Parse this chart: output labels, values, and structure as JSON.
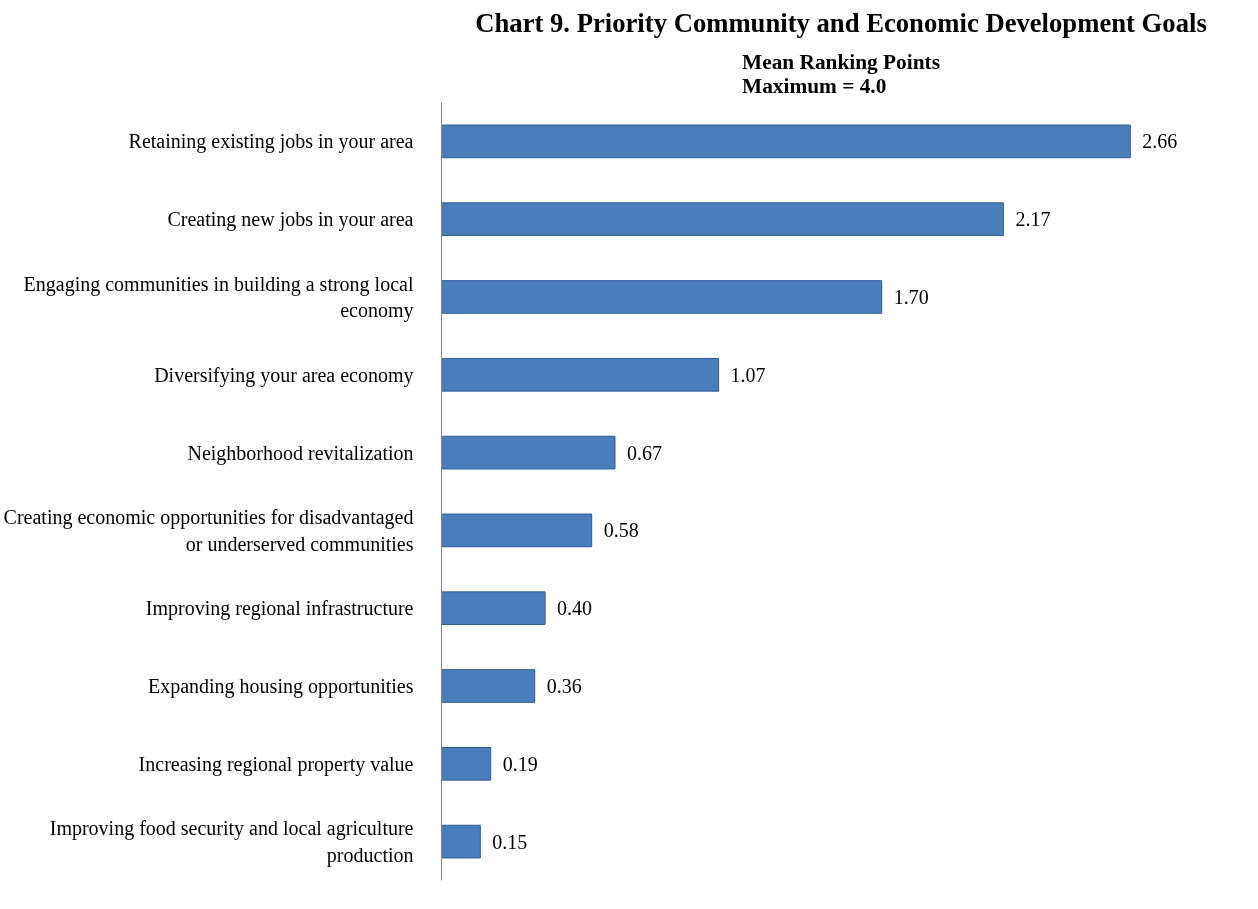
{
  "chart_data": {
    "type": "bar",
    "orientation": "horizontal",
    "title": "Chart 9. Priority Community and Economic Development Goals",
    "subtitle": "Mean Ranking Points\nMaximum = 4.0",
    "categories": [
      "Retaining existing jobs in your area",
      "Creating new jobs in your area",
      "Engaging communities in building a strong local economy",
      "Diversifying your area economy",
      "Neighborhood revitalization",
      "Creating economic opportunities for disadvantaged or underserved communities",
      "Improving regional infrastructure",
      "Expanding housing opportunities",
      "Increasing regional property value",
      "Improving food security and local agriculture production"
    ],
    "values": [
      2.66,
      2.17,
      1.7,
      1.07,
      0.67,
      0.58,
      0.4,
      0.36,
      0.19,
      0.15
    ],
    "value_labels": [
      "2.66",
      "2.17",
      "1.70",
      "1.07",
      "0.67",
      "0.58",
      "0.40",
      "0.36",
      "0.19",
      "0.15"
    ],
    "color": "#4a7ebb",
    "grid": false
  }
}
